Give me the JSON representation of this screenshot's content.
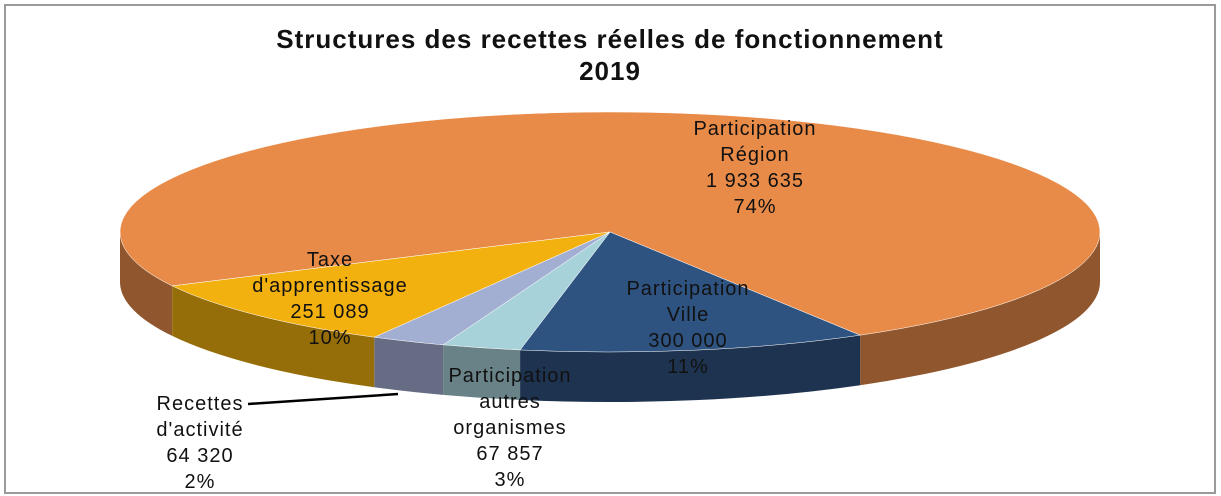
{
  "chart_data": {
    "type": "pie3d",
    "title": "Structures des recettes réelles de fonctionnement 2019",
    "categories": [
      "Participation Région",
      "Participation Ville",
      "Participation autres organismes",
      "Recettes d'activité",
      "Taxe d'apprentissage"
    ],
    "values": [
      1933635,
      300000,
      67857,
      64320,
      251089
    ],
    "value_labels": [
      "1 933 635",
      "300 000",
      "67 857",
      "64 320",
      "251 089"
    ],
    "percent_labels": [
      "74%",
      "11%",
      "3%",
      "2%",
      "10%"
    ],
    "colors": [
      "#e98b48",
      "#2f5380",
      "#a8d2d9",
      "#a3aed3",
      "#f2b10f"
    ]
  }
}
